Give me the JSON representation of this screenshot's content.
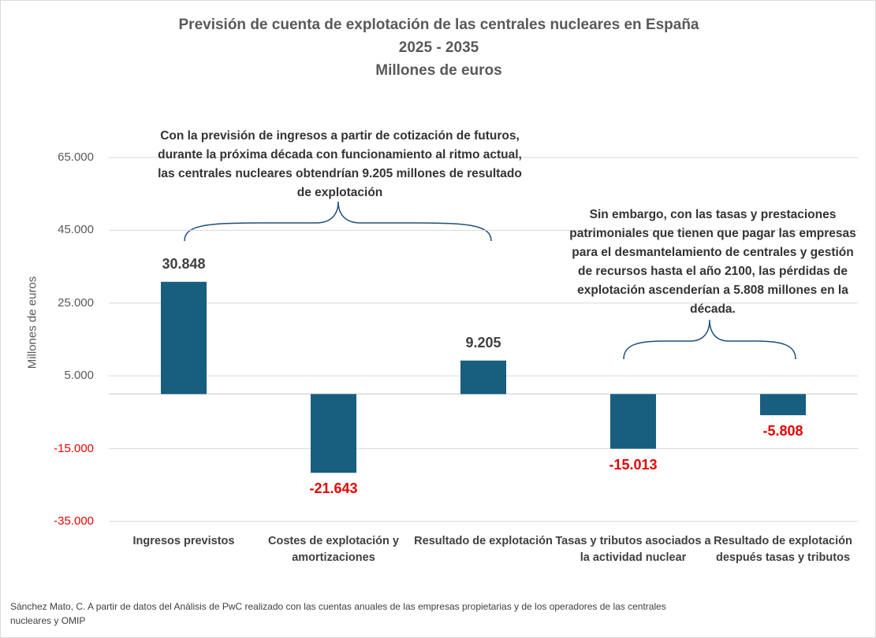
{
  "chart_data": {
    "type": "bar",
    "title_lines": [
      "Previsión de cuenta de explotación de las centrales nucleares en España",
      "2025 - 2035",
      "Millones de euros"
    ],
    "y_label": "Millones de euros",
    "categories": [
      "Ingresos previstos",
      "Costes de explotación y amortizaciones",
      "Resultado de explotación",
      "Tasas y tributos asociados a la actividad nuclear",
      "Resultado de explotación después tasas y tributos"
    ],
    "values": [
      30848,
      -21643,
      9205,
      -15013,
      -5808
    ],
    "value_labels": [
      "30.848",
      "-21.643",
      "9.205",
      "-15.013",
      "-5.808"
    ],
    "color": "#175e7f",
    "negative_color": "#e80000",
    "ylim": [
      -35000,
      65000
    ],
    "yticks": [
      {
        "value": -35000,
        "label": "-35.000"
      },
      {
        "value": -15000,
        "label": "-15.000"
      },
      {
        "value": 5000,
        "label": "5.000"
      },
      {
        "value": 25000,
        "label": "25.000"
      },
      {
        "value": 45000,
        "label": "45.000"
      },
      {
        "value": 65000,
        "label": "65.000"
      }
    ],
    "grid": true,
    "annotations": [
      "Con la previsión de ingresos a partir de cotización de futuros, durante la próxima década con funcionamiento al ritmo actual, las centrales nucleares obtendrían 9.205 millones de resultado de explotación",
      "Sin embargo, con las tasas y prestaciones patrimoniales que tienen que pagar las empresas para el desmantelamiento de centrales y gestión de recursos hasta el año 2100, las pérdidas de explotación ascenderían a 5.808 millones en la década."
    ],
    "source": "Sánchez Mato, C. A partir de datos del Análisis de PwC realizado con las cuentas anuales de las empresas propietarias y de los operadores de las centrales nucleares y OMIP"
  }
}
